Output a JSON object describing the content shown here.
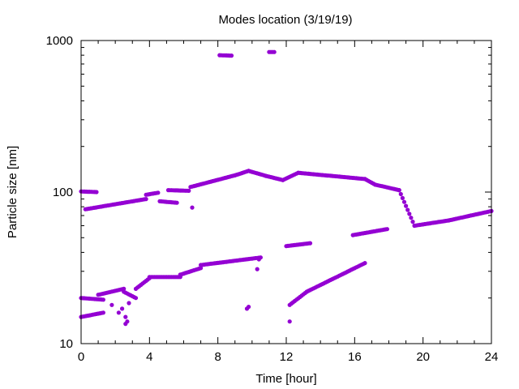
{
  "chart_data": {
    "type": "scatter",
    "title": "Modes location (3/19/19)",
    "xlabel": "Time [hour]",
    "ylabel": "Particle size [nm]",
    "xlim": [
      0,
      24
    ],
    "ylim": [
      10,
      1000
    ],
    "yscale": "log",
    "xticks": [
      0,
      4,
      8,
      12,
      16,
      20,
      24
    ],
    "yticks": [
      10,
      100,
      1000
    ],
    "grid": false,
    "legend": false,
    "marker_color": "#9400d3",
    "segments": [
      {
        "x": [
          0.0,
          0.9
        ],
        "y": [
          101,
          100
        ]
      },
      {
        "x": [
          0.25,
          3.8
        ],
        "y": [
          77,
          90
        ]
      },
      {
        "x": [
          3.8,
          4.5
        ],
        "y": [
          96,
          99
        ]
      },
      {
        "x": [
          4.6,
          5.6
        ],
        "y": [
          87,
          85
        ]
      },
      {
        "x": [
          5.1,
          6.3
        ],
        "y": [
          103,
          102
        ]
      },
      {
        "x": [
          6.4,
          9.0
        ],
        "y": [
          108,
          129
        ]
      },
      {
        "x": [
          9.0,
          9.8
        ],
        "y": [
          129,
          138
        ]
      },
      {
        "x": [
          9.8,
          10.8
        ],
        "y": [
          138,
          128
        ]
      },
      {
        "x": [
          10.8,
          11.8
        ],
        "y": [
          128,
          120
        ]
      },
      {
        "x": [
          11.8,
          12.7
        ],
        "y": [
          120,
          134
        ]
      },
      {
        "x": [
          12.7,
          16.6
        ],
        "y": [
          134,
          122
        ]
      },
      {
        "x": [
          16.6,
          17.2
        ],
        "y": [
          122,
          112
        ]
      },
      {
        "x": [
          17.2,
          18.6
        ],
        "y": [
          112,
          103
        ]
      },
      {
        "x": [
          18.6,
          19.5
        ],
        "y": [
          103,
          60
        ]
      },
      {
        "x": [
          19.5,
          21.5
        ],
        "y": [
          60,
          65
        ]
      },
      {
        "x": [
          21.5,
          24.0
        ],
        "y": [
          65,
          75
        ]
      },
      {
        "x": [
          8.1,
          8.8
        ],
        "y": [
          800,
          795
        ]
      },
      {
        "x": [
          11.0,
          11.3
        ],
        "y": [
          840,
          840
        ]
      },
      {
        "x": [
          0.0,
          1.3
        ],
        "y": [
          20,
          19.5
        ]
      },
      {
        "x": [
          0.0,
          1.3
        ],
        "y": [
          15,
          16
        ]
      },
      {
        "x": [
          1.0,
          2.5
        ],
        "y": [
          21,
          23
        ]
      },
      {
        "x": [
          2.5,
          3.2
        ],
        "y": [
          22,
          20
        ]
      },
      {
        "x": [
          3.2,
          4.0
        ],
        "y": [
          23,
          27
        ]
      },
      {
        "x": [
          4.0,
          5.8
        ],
        "y": [
          27.5,
          27.5
        ]
      },
      {
        "x": [
          5.8,
          7.0
        ],
        "y": [
          28.5,
          31.5
        ]
      },
      {
        "x": [
          7.0,
          10.5
        ],
        "y": [
          33,
          37
        ]
      },
      {
        "x": [
          12.0,
          13.4
        ],
        "y": [
          44,
          46
        ]
      },
      {
        "x": [
          12.2,
          13.2
        ],
        "y": [
          18,
          22
        ]
      },
      {
        "x": [
          13.2,
          16.6
        ],
        "y": [
          22,
          34
        ]
      },
      {
        "x": [
          15.9,
          17.9
        ],
        "y": [
          52,
          57
        ]
      }
    ],
    "scatter": [
      {
        "x": 6.5,
        "y": 79
      },
      {
        "x": 10.3,
        "y": 31
      },
      {
        "x": 9.7,
        "y": 17
      },
      {
        "x": 9.8,
        "y": 17.5
      },
      {
        "x": 12.2,
        "y": 14
      },
      {
        "x": 1.8,
        "y": 18
      },
      {
        "x": 2.2,
        "y": 16
      },
      {
        "x": 2.4,
        "y": 17
      },
      {
        "x": 2.6,
        "y": 15
      },
      {
        "x": 2.6,
        "y": 13.5
      },
      {
        "x": 2.7,
        "y": 14
      },
      {
        "x": 2.8,
        "y": 18.5
      },
      {
        "x": 10.4,
        "y": 36
      }
    ]
  }
}
